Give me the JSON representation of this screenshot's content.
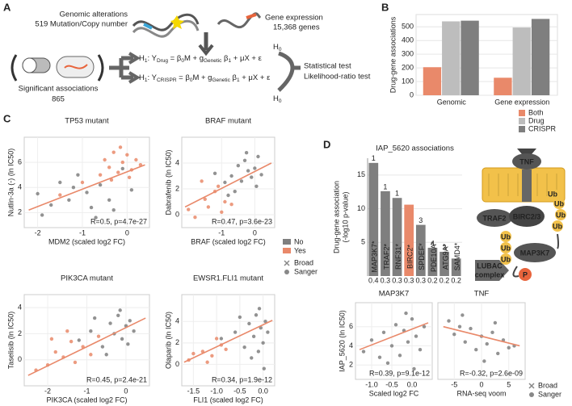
{
  "panel_labels": [
    "A",
    "B",
    "C",
    "D"
  ],
  "panel_a": {
    "genomic_title": "Genomic alterations",
    "genomic_count": "519 Mutation/Copy number",
    "expression_title": "Gene expression",
    "expression_count": "15,368 genes",
    "significant_title": "Significant associations",
    "significant_count": "865",
    "formula_1": [
      "H",
      "1",
      ": Y",
      "Drug",
      " = β",
      "0",
      "M + g",
      "Genetic",
      " β",
      "1",
      " + μX + ε"
    ],
    "formula_2": [
      "H",
      "1",
      ": Y",
      "CRISPR",
      " = β",
      "0",
      "M + g",
      "Genetic",
      " β",
      "1",
      " + μX + ε"
    ],
    "h0": [
      "H",
      "0"
    ],
    "test_title": "Statistical test",
    "test_name": "Likelihood-ratio test"
  },
  "c_legend": {
    "items": [
      "No",
      "Yes"
    ],
    "colors": [
      "#7f7f7f",
      "#e9896a"
    ],
    "sources": [
      "Broad",
      "Sanger"
    ]
  },
  "d_legend": {
    "sources": [
      "Broad",
      "Sanger"
    ]
  },
  "diagram": {
    "tnf": "TNF",
    "traf2": "TRAF2",
    "birc": "BIRC2/3",
    "ub": [
      "Ub",
      "Ub",
      "Ub",
      "Ub",
      "Ub",
      "Ub",
      "Ub"
    ],
    "map3k7": "MAP3K7",
    "lubac": [
      "LUBAC",
      "complex"
    ],
    "p": "P"
  },
  "chart_data": [
    {
      "type": "bar",
      "y_label": "Drug-gene associations",
      "categories": [
        "Genomic",
        "Gene expression"
      ],
      "series": [
        {
          "name": "Both",
          "color": "#e9896a",
          "values": [
            205,
            128
          ]
        },
        {
          "name": "Drug",
          "color": "#bdbdbd",
          "values": [
            540,
            495
          ]
        },
        {
          "name": "CRISPR",
          "color": "#7f7f7f",
          "values": [
            545,
            558
          ]
        }
      ],
      "ylim": [
        0,
        590
      ],
      "yticks": [
        0,
        100,
        200,
        300,
        400,
        500
      ],
      "legend": "bottom-right",
      "grid": true
    },
    {
      "type": "scatter",
      "title": "TP53 mutant",
      "x_label": "MDM2 (scaled log2 FC)",
      "y_label": "Nutlin-3a (-) (ln IC50)",
      "annotation": "R=0.5, p=4.7e-27",
      "xlim": [
        -2.3,
        0.5
      ],
      "ylim": [
        0.8,
        8
      ],
      "xticks": [
        -2,
        -1,
        0
      ],
      "yticks": [
        2,
        4,
        6
      ],
      "series": [
        {
          "color": "#7f7f7f",
          "x": [
            -2.0,
            -1.7,
            -1.5,
            -1.3,
            -1.1,
            -0.9,
            -0.8,
            -0.6,
            -0.4,
            -0.3,
            -0.1,
            0.1,
            -1.9,
            -0.7,
            -1.2
          ],
          "y": [
            3.5,
            2.6,
            4.4,
            3.0,
            5.0,
            3.6,
            2.4,
            4.2,
            3.0,
            2.2,
            5.5,
            3.8,
            1.8,
            1.6,
            4.0
          ]
        },
        {
          "color": "#e9896a",
          "x": [
            -0.6,
            -0.5,
            -0.4,
            -0.3,
            -0.2,
            -0.1,
            0.0,
            0.1,
            0.2,
            0.3,
            -0.35,
            -0.15,
            0.05,
            -1.0,
            -1.5
          ],
          "y": [
            5.0,
            6.2,
            5.6,
            6.8,
            5.2,
            6.0,
            6.6,
            5.4,
            6.2,
            5.8,
            4.6,
            7.2,
            4.8,
            4.4,
            3.4
          ]
        }
      ],
      "trend": {
        "color": "#e9896a",
        "x": [
          -2.2,
          0.4
        ],
        "y": [
          2.2,
          5.8
        ]
      }
    },
    {
      "type": "scatter",
      "title": "BRAF mutant",
      "x_label": "BRAF (scaled log2 FC)",
      "y_label": "Dabrafenib (ln IC50)",
      "annotation": "R=0.47, p=3.6e-23",
      "xlim": [
        -2.2,
        0.6
      ],
      "ylim": [
        -1,
        6
      ],
      "xticks": [
        -1,
        0
      ],
      "yticks": [
        0,
        2,
        4
      ],
      "series": [
        {
          "color": "#7f7f7f",
          "x": [
            -1.2,
            -0.9,
            -0.7,
            -0.5,
            -0.4,
            -0.3,
            -0.2,
            -0.1,
            0.0,
            0.1,
            0.2,
            -0.6,
            -0.25,
            0.05,
            -0.8
          ],
          "y": [
            3.2,
            2.5,
            3.0,
            3.8,
            2.6,
            4.2,
            3.4,
            2.9,
            3.6,
            4.5,
            3.1,
            1.8,
            4.8,
            2.2,
            1.5
          ]
        },
        {
          "color": "#e9896a",
          "x": [
            -2.0,
            -1.8,
            -1.5,
            -1.4,
            -1.2,
            -1.0,
            -0.9,
            -1.6,
            -0.7,
            -1.1
          ],
          "y": [
            0.4,
            -0.2,
            1.2,
            0.6,
            1.8,
            0.2,
            1.0,
            2.6,
            0.8,
            2.2
          ]
        }
      ],
      "trend": {
        "color": "#e9896a",
        "x": [
          -2.1,
          0.5
        ],
        "y": [
          0.6,
          4.0
        ]
      }
    },
    {
      "type": "scatter",
      "title": "PIK3CA mutant",
      "x_label": "PIK3CA (scaled log2 FC)",
      "y_label": "Taselisib (ln IC50)",
      "annotation": "R=0.45, p=2.4e-21",
      "xlim": [
        -2.6,
        0.6
      ],
      "ylim": [
        -2,
        5
      ],
      "xticks": [
        -2,
        -1,
        0
      ],
      "yticks": [
        0,
        2,
        4
      ],
      "series": [
        {
          "color": "#7f7f7f",
          "x": [
            -1.2,
            -0.9,
            -0.6,
            -0.4,
            -0.3,
            -0.2,
            -0.1,
            0.0,
            0.1,
            0.2,
            -0.5,
            -0.8,
            -0.15,
            0.05
          ],
          "y": [
            1.5,
            2.2,
            1.0,
            2.8,
            2.0,
            3.4,
            1.6,
            2.6,
            3.0,
            2.2,
            0.4,
            3.2,
            3.8,
            1.2
          ]
        },
        {
          "color": "#e9896a",
          "x": [
            -2.3,
            -2.0,
            -1.8,
            -1.6,
            -1.4,
            -1.3,
            -1.1,
            -0.9,
            -0.7,
            -1.5,
            -1.9
          ],
          "y": [
            -0.8,
            -0.4,
            0.6,
            0.2,
            1.4,
            -0.2,
            1.0,
            0.4,
            1.8,
            2.2,
            1.6
          ]
        }
      ],
      "trend": {
        "color": "#e9896a",
        "x": [
          -2.5,
          0.5
        ],
        "y": [
          -1.2,
          3.2
        ]
      }
    },
    {
      "type": "scatter",
      "title": "EWSR1.FLI1 mutant",
      "x_label": "FLI1 (scaled log2 FC)",
      "y_label": "Olaparib (ln IC50)",
      "annotation": "R=0.34, p=1.9e-12",
      "xlim": [
        -1.75,
        0.25
      ],
      "ylim": [
        -2,
        6.5
      ],
      "xticks": [
        -1.5,
        {
          "value": -1,
          "label": "-1.0"
        },
        -0.5,
        {
          "value": 0,
          "label": "0.0"
        }
      ],
      "yticks": [
        0,
        2,
        4
      ],
      "series": [
        {
          "color": "#7f7f7f",
          "x": [
            -0.9,
            -0.6,
            -0.4,
            -0.3,
            -0.2,
            -0.15,
            -0.1,
            -0.05,
            0.0,
            0.05,
            0.1,
            -0.25,
            -0.5,
            -0.08,
            0.02
          ],
          "y": [
            2.4,
            3.0,
            1.6,
            3.8,
            2.6,
            4.6,
            1.2,
            3.4,
            2.0,
            4.0,
            3.0,
            0.6,
            4.4,
            5.2,
            -0.4
          ]
        },
        {
          "color": "#e9896a",
          "x": [
            -1.6,
            -1.5,
            -1.3,
            -1.1,
            -1.0,
            -0.9,
            -0.8,
            -1.2
          ],
          "y": [
            0.4,
            1.0,
            1.2,
            0.8,
            2.4,
            1.8,
            1.4,
            0.2
          ]
        }
      ],
      "trend": {
        "color": "#e9896a",
        "x": [
          -1.7,
          0.2
        ],
        "y": [
          0.2,
          4.1
        ]
      }
    },
    {
      "type": "bar",
      "title": "IAP_5620 associations",
      "y_label": [
        "Drug-gene association",
        "(-log10 p-value)"
      ],
      "categories": [
        "MAP3K7*",
        "TRAF2*",
        "RNF31*",
        "BIRC2*",
        "SPDEF*",
        "PDE10A*",
        "ATG9A*",
        "SAMD4*"
      ],
      "values": [
        16.8,
        12.6,
        11.6,
        10.6,
        7.6,
        4.2,
        3.6,
        2.6
      ],
      "top_labels": [
        "1",
        "1",
        "1",
        null,
        "3",
        "4",
        "3",
        null
      ],
      "correlations": [
        0.4,
        0.3,
        0.3,
        0.3,
        0.3,
        0.2,
        0.2,
        0.2
      ],
      "colors": [
        "#7f7f7f",
        "#7f7f7f",
        "#7f7f7f",
        "#e9896a",
        "#7f7f7f",
        "#7f7f7f",
        "#7f7f7f",
        "#7f7f7f"
      ],
      "ylim": [
        0,
        17.5
      ],
      "yticks": [
        5,
        10,
        15
      ],
      "grid": true
    },
    {
      "type": "scatter",
      "title": "MAP3K7",
      "x_label": "Scaled log2 FC",
      "y_label": "IAP_5620 (ln IC50)",
      "annotation": "R=0.39, p=9.1e-12",
      "xlim": [
        -1.4,
        0.5
      ],
      "ylim": [
        0.5,
        8.5
      ],
      "xticks": [
        {
          "value": -1,
          "label": "-1.0"
        },
        -0.5,
        {
          "value": 0,
          "label": "0.0"
        }
      ],
      "yticks": [
        2,
        4,
        6
      ],
      "series": [
        {
          "color": "#7f7f7f",
          "x": [
            -1.2,
            -1.0,
            -0.8,
            -0.7,
            -0.5,
            -0.4,
            -0.3,
            -0.2,
            -0.1,
            0.0,
            0.1,
            0.2,
            0.3,
            -0.6,
            -0.15,
            0.05
          ],
          "y": [
            3.4,
            4.6,
            2.8,
            5.4,
            4.0,
            6.2,
            3.0,
            5.6,
            4.4,
            6.8,
            5.0,
            3.6,
            6.0,
            2.2,
            7.4,
            1.6
          ]
        }
      ],
      "trend": {
        "color": "#e9896a",
        "x": [
          -1.3,
          0.4
        ],
        "y": [
          3.6,
          6.4
        ]
      }
    },
    {
      "type": "scatter",
      "title": "TNF",
      "x_label": "RNA-seq voom",
      "annotation": "R=-0.32, p=2.6e-09",
      "xlim": [
        -8,
        8
      ],
      "ylim": [
        0.5,
        8.5
      ],
      "xticks": [
        -5,
        0,
        5
      ],
      "series": [
        {
          "color": "#7f7f7f",
          "x": [
            -6,
            -5,
            -4,
            -3,
            -2,
            -1,
            0,
            1,
            2,
            3,
            4,
            5,
            6,
            -3.5,
            0.5,
            2.5
          ],
          "y": [
            6.6,
            5.2,
            6.0,
            4.4,
            5.8,
            3.6,
            5.0,
            4.2,
            5.4,
            3.2,
            4.6,
            3.8,
            4.0,
            7.2,
            2.4,
            6.4
          ]
        }
      ],
      "trend": {
        "color": "#e9896a",
        "x": [
          -7,
          7
        ],
        "y": [
          6.0,
          4.0
        ]
      }
    }
  ]
}
